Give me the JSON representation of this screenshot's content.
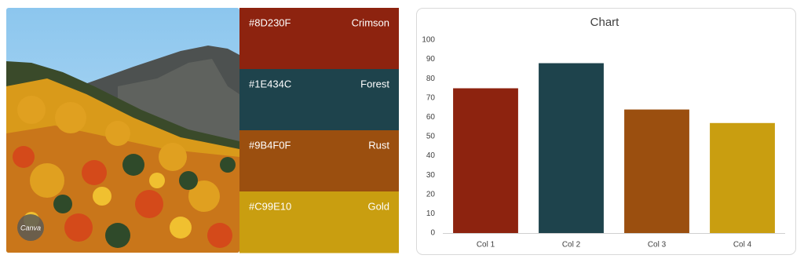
{
  "palette": [
    {
      "hex": "#8D230F",
      "name": "Crimson"
    },
    {
      "hex": "#1E434C",
      "name": "Forest"
    },
    {
      "hex": "#9B4F0F",
      "name": "Rust"
    },
    {
      "hex": "#C99E10",
      "name": "Gold"
    }
  ],
  "watermark": "Canva",
  "chart_data": {
    "type": "bar",
    "title": "Chart",
    "categories": [
      "Col 1",
      "Col 2",
      "Col 3",
      "Col 4"
    ],
    "values": [
      75,
      88,
      64,
      57
    ],
    "colors": [
      "#8D230F",
      "#1E434C",
      "#9B4F0F",
      "#C99E10"
    ],
    "ylim": [
      0,
      100
    ],
    "yticks": [
      0,
      10,
      20,
      30,
      40,
      50,
      60,
      70,
      80,
      90,
      100
    ],
    "grid": false
  }
}
